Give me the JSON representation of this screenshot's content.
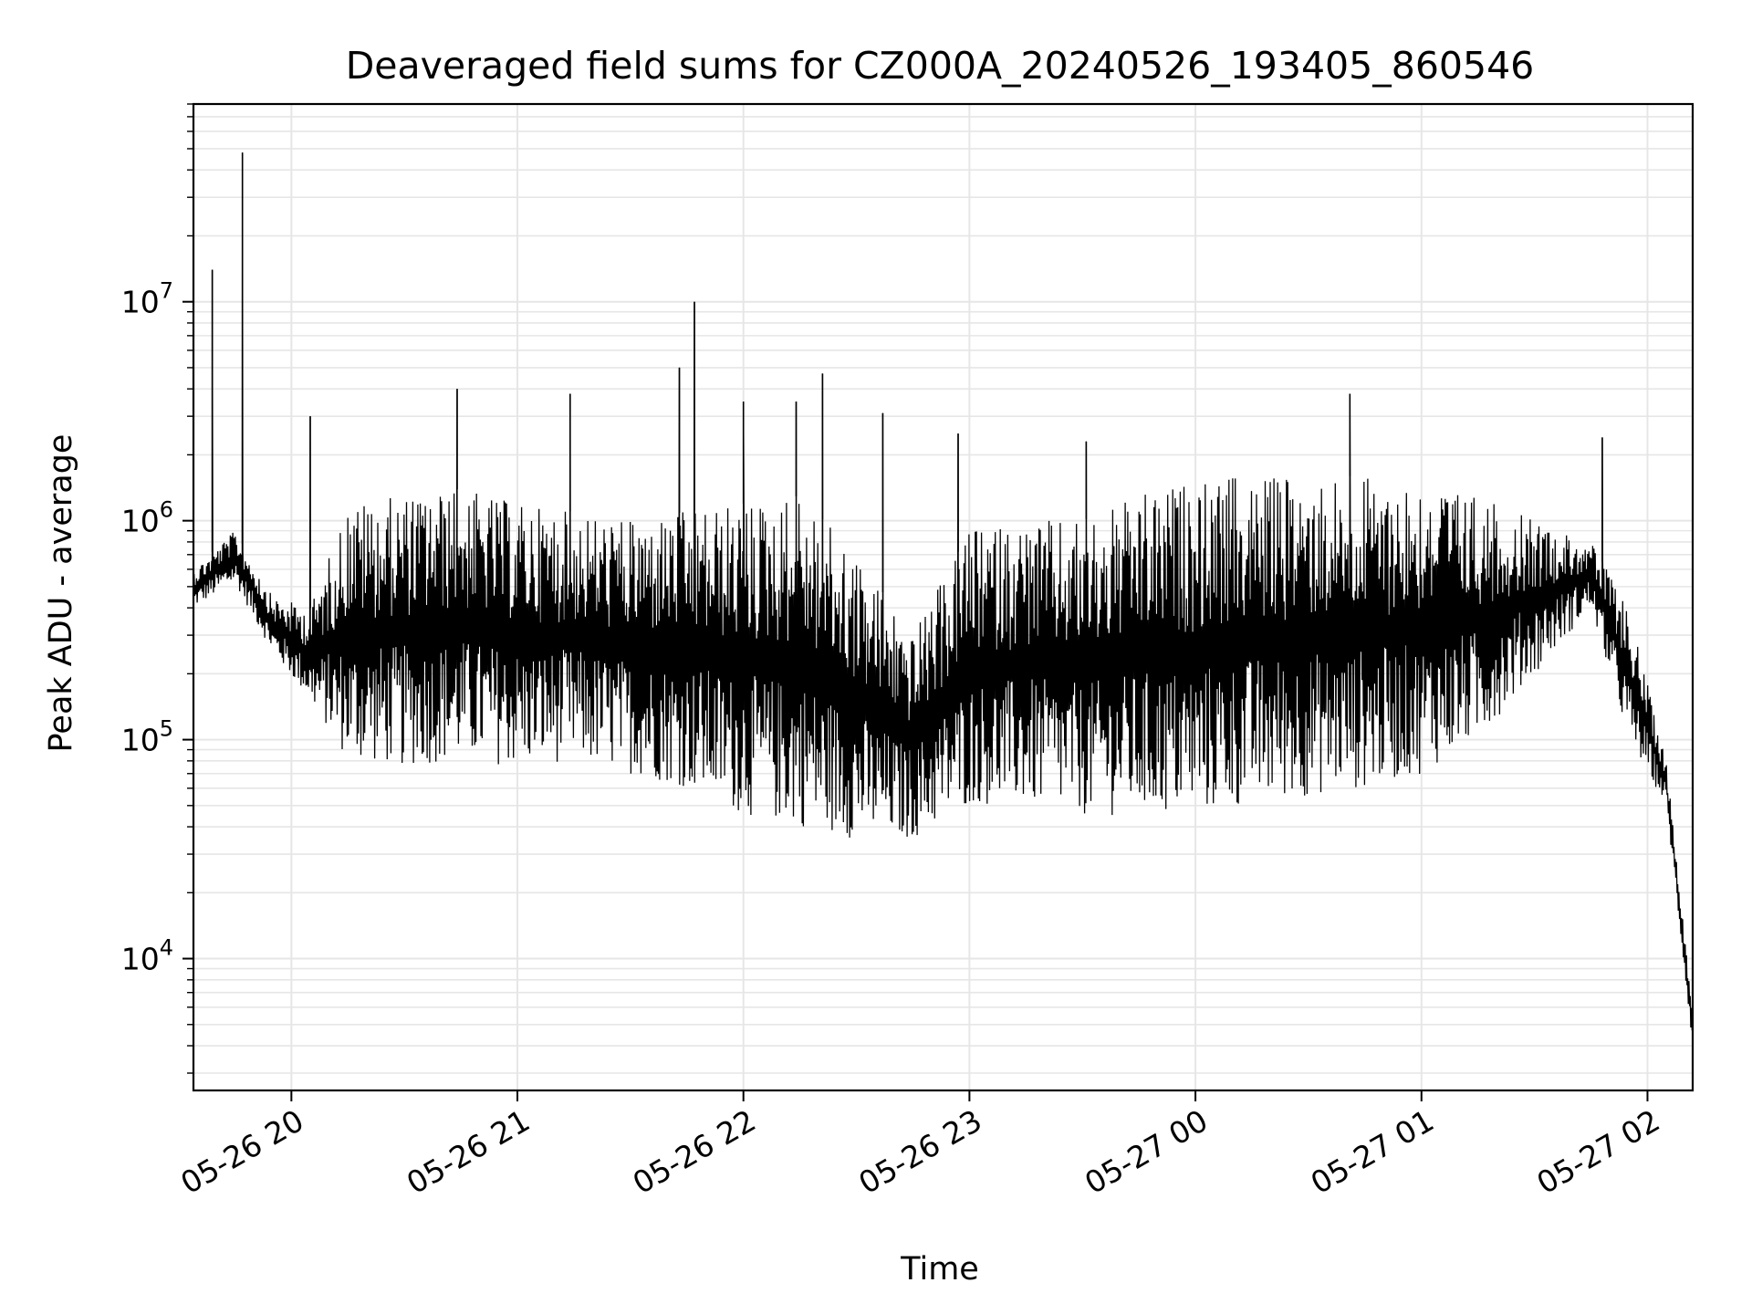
{
  "chart_data": {
    "type": "line",
    "title": "Deaveraged field sums for CZ000A_20240526_193405_860546",
    "xlabel": "Time",
    "ylabel": "Peak ADU - average",
    "yscale": "log",
    "ylim": [
      2500,
      80000000
    ],
    "xlim": [
      "2024-05-26 19:34",
      "2024-05-27 02:12"
    ],
    "grid": true,
    "line_color": "#000000",
    "grid_color": "#e6e6e6",
    "x_ticks": [
      {
        "label": "05-26 20",
        "value": "2024-05-26 20:00"
      },
      {
        "label": "05-26 21",
        "value": "2024-05-26 21:00"
      },
      {
        "label": "05-26 22",
        "value": "2024-05-26 22:00"
      },
      {
        "label": "05-26 23",
        "value": "2024-05-26 23:00"
      },
      {
        "label": "05-27 00",
        "value": "2024-05-27 00:00"
      },
      {
        "label": "05-27 01",
        "value": "2024-05-27 01:00"
      },
      {
        "label": "05-27 02",
        "value": "2024-05-27 02:00"
      }
    ],
    "y_ticks": [
      {
        "base": "10",
        "exp": "4",
        "value": 10000
      },
      {
        "base": "10",
        "exp": "5",
        "value": 100000
      },
      {
        "base": "10",
        "exp": "6",
        "value": 1000000
      },
      {
        "base": "10",
        "exp": "7",
        "value": 10000000
      }
    ],
    "series": [
      {
        "envelope": [
          {
            "t": "2024-05-26 19:34",
            "low": 400000,
            "high": 600000
          },
          {
            "t": "2024-05-26 19:45",
            "low": 520000,
            "high": 900000
          },
          {
            "t": "2024-05-26 19:55",
            "low": 250000,
            "high": 450000
          },
          {
            "t": "2024-05-26 20:05",
            "low": 150000,
            "high": 400000
          },
          {
            "t": "2024-05-26 20:15",
            "low": 80000,
            "high": 1200000
          },
          {
            "t": "2024-05-26 20:30",
            "low": 75000,
            "high": 1300000
          },
          {
            "t": "2024-05-26 20:45",
            "low": 80000,
            "high": 1400000
          },
          {
            "t": "2024-05-26 21:00",
            "low": 75000,
            "high": 1200000
          },
          {
            "t": "2024-05-26 21:15",
            "low": 80000,
            "high": 1100000
          },
          {
            "t": "2024-05-26 21:30",
            "low": 70000,
            "high": 1000000
          },
          {
            "t": "2024-05-26 21:45",
            "low": 60000,
            "high": 1100000
          },
          {
            "t": "2024-05-26 22:00",
            "low": 45000,
            "high": 1200000
          },
          {
            "t": "2024-05-26 22:15",
            "low": 40000,
            "high": 1300000
          },
          {
            "t": "2024-05-26 22:30",
            "low": 35000,
            "high": 700000
          },
          {
            "t": "2024-05-26 22:45",
            "low": 35000,
            "high": 300000
          },
          {
            "t": "2024-05-26 23:00",
            "low": 50000,
            "high": 900000
          },
          {
            "t": "2024-05-26 23:15",
            "low": 50000,
            "high": 1000000
          },
          {
            "t": "2024-05-26 23:30",
            "low": 45000,
            "high": 1000000
          },
          {
            "t": "2024-05-26 23:45",
            "low": 45000,
            "high": 1300000
          },
          {
            "t": "2024-05-27 00:00",
            "low": 45000,
            "high": 1500000
          },
          {
            "t": "2024-05-27 00:15",
            "low": 50000,
            "high": 1600000
          },
          {
            "t": "2024-05-27 00:30",
            "low": 55000,
            "high": 1600000
          },
          {
            "t": "2024-05-27 00:45",
            "low": 60000,
            "high": 1600000
          },
          {
            "t": "2024-05-27 01:00",
            "low": 70000,
            "high": 1500000
          },
          {
            "t": "2024-05-27 01:15",
            "low": 100000,
            "high": 1300000
          },
          {
            "t": "2024-05-27 01:30",
            "low": 200000,
            "high": 1000000
          },
          {
            "t": "2024-05-27 01:45",
            "low": 400000,
            "high": 800000
          },
          {
            "t": "2024-05-27 01:55",
            "low": 100000,
            "high": 400000
          },
          {
            "t": "2024-05-27 02:05",
            "low": 50000,
            "high": 80000
          },
          {
            "t": "2024-05-27 02:12",
            "low": 4000,
            "high": 6000
          }
        ],
        "spikes": [
          {
            "t": "2024-05-26 19:39",
            "value": 14000000
          },
          {
            "t": "2024-05-26 19:47",
            "value": 48000000
          },
          {
            "t": "2024-05-26 20:05",
            "value": 3000000
          },
          {
            "t": "2024-05-26 20:44",
            "value": 4000000
          },
          {
            "t": "2024-05-26 21:14",
            "value": 3800000
          },
          {
            "t": "2024-05-26 21:43",
            "value": 5000000
          },
          {
            "t": "2024-05-26 21:47",
            "value": 10000000
          },
          {
            "t": "2024-05-26 22:00",
            "value": 3500000
          },
          {
            "t": "2024-05-26 22:14",
            "value": 3500000
          },
          {
            "t": "2024-05-26 22:21",
            "value": 4700000
          },
          {
            "t": "2024-05-26 22:37",
            "value": 3100000
          },
          {
            "t": "2024-05-26 22:57",
            "value": 2500000
          },
          {
            "t": "2024-05-26 23:31",
            "value": 2300000
          },
          {
            "t": "2024-05-27 00:41",
            "value": 3800000
          },
          {
            "t": "2024-05-27 01:48",
            "value": 2400000
          }
        ],
        "endpoint": {
          "t": "2024-05-27 02:12",
          "value": 4000
        }
      }
    ]
  }
}
